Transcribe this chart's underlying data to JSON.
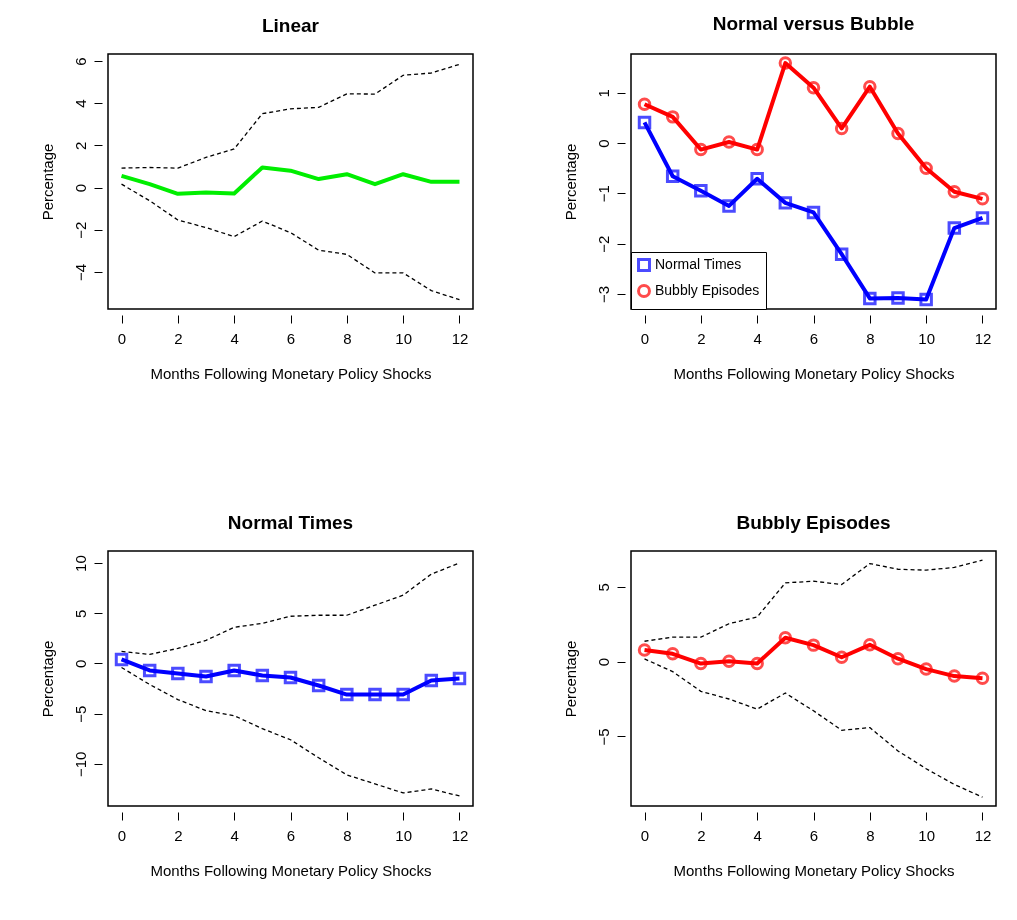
{
  "chart_data": [
    {
      "type": "line",
      "title": "Linear",
      "xlabel": "Months Following Monetary Policy Shocks",
      "ylabel": "Percentage",
      "x": [
        0,
        1,
        2,
        3,
        4,
        5,
        6,
        7,
        8,
        9,
        10,
        11,
        12
      ],
      "xlim": [
        -0.48,
        12.48
      ],
      "xticks": [
        0,
        2,
        4,
        6,
        8,
        10,
        12
      ],
      "ylim": [
        -5.76,
        6.33
      ],
      "yticks": [
        -4,
        -2,
        0,
        2,
        4,
        6
      ],
      "series": [
        {
          "color": "#00ee00",
          "line_style": "solid",
          "values": [
            0.55,
            0.16,
            -0.3,
            -0.24,
            -0.28,
            0.95,
            0.8,
            0.4,
            0.63,
            0.16,
            0.63,
            0.27,
            0.27
          ]
        },
        {
          "color": "#000000",
          "line_style": "dashed",
          "values": [
            0.92,
            0.95,
            0.92,
            1.43,
            1.83,
            3.5,
            3.73,
            3.8,
            4.44,
            4.43,
            5.32,
            5.43,
            5.84
          ]
        },
        {
          "color": "#000000",
          "line_style": "dashed",
          "values": [
            0.16,
            -0.63,
            -1.54,
            -1.9,
            -2.33,
            -1.59,
            -2.14,
            -2.97,
            -3.17,
            -4.05,
            -4.05,
            -4.89,
            -5.32
          ]
        }
      ]
    },
    {
      "type": "line",
      "title": "Normal versus Bubble",
      "xlabel": "Months Following Monetary Policy Shocks",
      "ylabel": "Percentage",
      "x": [
        0,
        1,
        2,
        3,
        4,
        5,
        6,
        7,
        8,
        9,
        10,
        11,
        12
      ],
      "xlim": [
        -0.48,
        12.48
      ],
      "xticks": [
        0,
        2,
        4,
        6,
        8,
        10,
        12
      ],
      "ylim": [
        -3.3,
        1.77
      ],
      "yticks": [
        -3,
        -2,
        -1,
        0,
        1
      ],
      "legend": "bottom left",
      "series": [
        {
          "name": "Normal Times",
          "color": "#0000ff",
          "marker": "square",
          "line_style": "solid",
          "values": [
            0.41,
            -0.66,
            -0.95,
            -1.25,
            -0.71,
            -1.19,
            -1.38,
            -2.21,
            -3.09,
            -3.08,
            -3.11,
            -1.69,
            -1.49
          ]
        },
        {
          "name": "Bubbly Episodes",
          "color": "#ff0000",
          "marker": "circle",
          "line_style": "solid",
          "values": [
            0.77,
            0.52,
            -0.13,
            0.02,
            -0.13,
            1.59,
            1.1,
            0.29,
            1.12,
            0.19,
            -0.5,
            -0.97,
            -1.11
          ]
        }
      ]
    },
    {
      "type": "line",
      "title": "Normal Times",
      "xlabel": "Months Following Monetary Policy Shocks",
      "ylabel": "Percentage",
      "x": [
        0,
        1,
        2,
        3,
        4,
        5,
        6,
        7,
        8,
        9,
        10,
        11,
        12
      ],
      "xlim": [
        -0.48,
        12.48
      ],
      "xticks": [
        0,
        2,
        4,
        6,
        8,
        10,
        12
      ],
      "ylim": [
        -14.2,
        11.2
      ],
      "yticks": [
        -10,
        -5,
        0,
        5,
        10
      ],
      "series": [
        {
          "color": "#0000ff",
          "marker": "square",
          "line_style": "solid",
          "values": [
            0.4,
            -0.7,
            -1.0,
            -1.3,
            -0.7,
            -1.2,
            -1.4,
            -2.2,
            -3.1,
            -3.1,
            -3.1,
            -1.7,
            -1.5
          ]
        },
        {
          "color": "#000000",
          "line_style": "dashed",
          "values": [
            1.2,
            0.9,
            1.5,
            2.3,
            3.6,
            4.0,
            4.7,
            4.8,
            4.8,
            5.8,
            6.8,
            8.9,
            10.0
          ]
        },
        {
          "color": "#000000",
          "line_style": "dashed",
          "values": [
            -0.4,
            -2.1,
            -3.6,
            -4.7,
            -5.2,
            -6.5,
            -7.6,
            -9.4,
            -11.1,
            -12.0,
            -12.9,
            -12.5,
            -13.2
          ]
        }
      ]
    },
    {
      "type": "line",
      "title": "Bubbly Episodes",
      "xlabel": "Months Following Monetary Policy Shocks",
      "ylabel": "Percentage",
      "x": [
        0,
        1,
        2,
        3,
        4,
        5,
        6,
        7,
        8,
        9,
        10,
        11,
        12
      ],
      "xlim": [
        -0.48,
        12.48
      ],
      "xticks": [
        0,
        2,
        4,
        6,
        8,
        10,
        12
      ],
      "ylim": [
        -9.65,
        7.39
      ],
      "yticks": [
        -5,
        0,
        5
      ],
      "series": [
        {
          "color": "#ff0000",
          "marker": "circle",
          "line_style": "solid",
          "values": [
            0.77,
            0.52,
            -0.13,
            0.02,
            -0.13,
            1.59,
            1.1,
            0.29,
            1.12,
            0.19,
            -0.5,
            -0.97,
            -1.11
          ]
        },
        {
          "color": "#000000",
          "line_style": "dashed",
          "values": [
            1.36,
            1.63,
            1.63,
            2.53,
            2.98,
            5.26,
            5.37,
            5.15,
            6.55,
            6.17,
            6.11,
            6.29,
            6.78
          ]
        },
        {
          "color": "#000000",
          "line_style": "dashed",
          "values": [
            0.18,
            -0.67,
            -1.99,
            -2.5,
            -3.18,
            -2.1,
            -3.29,
            -4.59,
            -4.41,
            -5.97,
            -7.16,
            -8.21,
            -9.06
          ]
        }
      ]
    }
  ]
}
